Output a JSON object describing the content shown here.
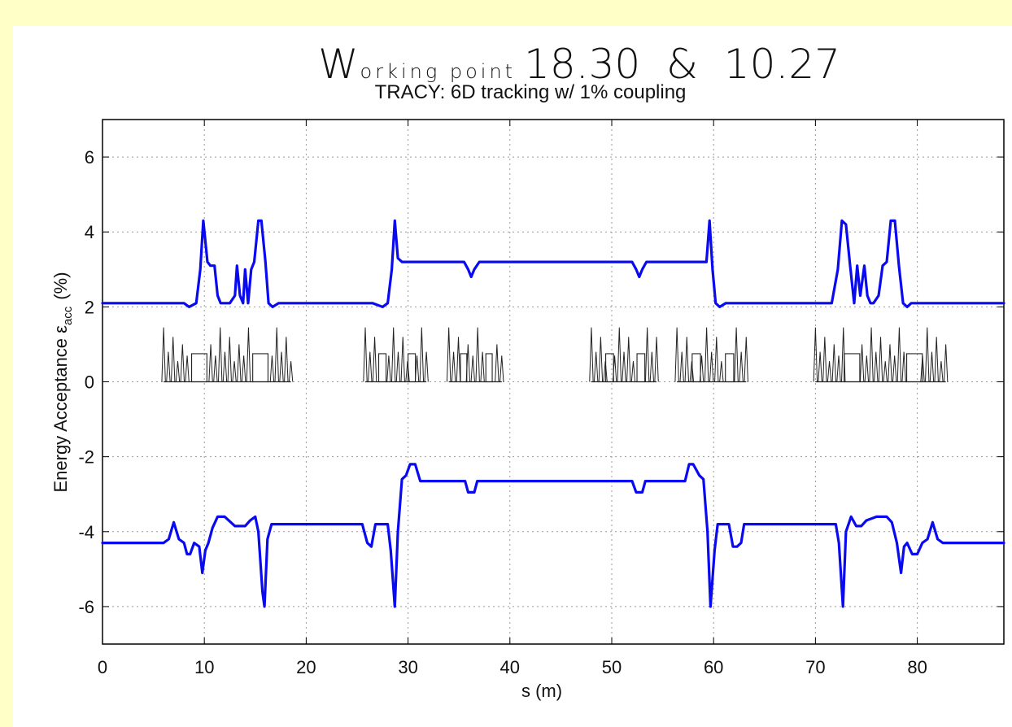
{
  "chart_data": {
    "type": "line",
    "title_main": "Working point 18.30 & 10.27",
    "title_main_parts": [
      "W",
      "orking point",
      "18.30  &  10.27"
    ],
    "title": "TRACY: 6D tracking w/ 1% coupling",
    "xlabel": "s (m)",
    "ylabel": "Energy Acceptance ε",
    "ylabel_sub": "acc",
    "ylabel_unit": "(%)",
    "xlim": [
      0,
      88.5
    ],
    "ylim": [
      -7,
      7
    ],
    "xticks": [
      "0",
      "10",
      "20",
      "30",
      "40",
      "50",
      "60",
      "70",
      "80"
    ],
    "yticks": [
      "-6",
      "-4",
      "-2",
      "0",
      "2",
      "4",
      "6"
    ],
    "grid": true,
    "colors": {
      "series": "#0a0af0",
      "lattice": "#222222",
      "page_background": "#ffffc8",
      "plot_background": "#ffffff"
    },
    "series": [
      {
        "x": [
          0,
          8.0,
          8.5,
          9.2,
          9.6,
          9.9,
          10.3,
          10.6,
          11.0,
          11.3,
          11.6,
          12.5,
          13.0,
          13.2,
          13.5,
          13.8,
          14.0,
          14.3,
          14.6,
          14.9,
          15.3,
          15.6,
          16.0,
          16.3,
          16.7,
          17.3,
          18.0,
          26.5,
          27.5,
          28.0,
          28.4,
          28.7,
          29.0,
          29.4,
          35.5,
          35.9,
          36.2,
          36.5,
          37.0,
          52.0,
          52.4,
          52.7,
          53.0,
          53.4,
          59.3,
          59.6,
          59.9,
          60.2,
          60.6,
          61.2,
          62.0,
          71.0,
          71.6,
          72.2,
          72.6,
          73.0,
          73.4,
          73.8,
          74.1,
          74.4,
          74.8,
          75.1,
          75.4,
          75.7,
          76.2,
          76.6,
          77.0,
          77.4,
          77.8,
          78.2,
          78.6,
          79.0,
          79.4,
          80.2,
          80.6,
          81.0,
          81.5,
          88.5
        ],
        "y": [
          2.1,
          2.1,
          2.0,
          2.1,
          3.0,
          4.3,
          3.2,
          3.1,
          3.1,
          2.3,
          2.1,
          2.1,
          2.3,
          3.1,
          2.3,
          2.1,
          3.0,
          2.1,
          3.0,
          3.2,
          4.3,
          4.3,
          3.2,
          2.1,
          2.0,
          2.1,
          2.1,
          2.1,
          2.0,
          2.1,
          3.0,
          4.3,
          3.3,
          3.2,
          3.2,
          3.0,
          2.8,
          3.0,
          3.2,
          3.2,
          3.0,
          2.8,
          3.0,
          3.2,
          3.2,
          4.3,
          3.0,
          2.1,
          2.0,
          2.1,
          2.1,
          2.1,
          2.1,
          3.0,
          4.3,
          4.2,
          3.1,
          2.1,
          3.1,
          2.3,
          3.1,
          2.3,
          2.1,
          2.1,
          2.3,
          3.1,
          3.2,
          4.3,
          4.3,
          3.1,
          2.1,
          2.0,
          2.1,
          2.1,
          2.1,
          2.1,
          2.1,
          2.1
        ]
      },
      {
        "x": [
          0,
          6.0,
          6.5,
          7.0,
          7.5,
          8.0,
          8.3,
          8.6,
          9.0,
          9.5,
          9.8,
          10.1,
          10.4,
          10.8,
          11.3,
          12.0,
          13.0,
          14.0,
          14.5,
          15.0,
          15.3,
          15.7,
          15.9,
          16.2,
          16.6,
          17.0,
          25.5,
          26.0,
          26.4,
          26.8,
          27.3,
          28.0,
          28.3,
          28.7,
          29.0,
          29.4,
          29.8,
          30.2,
          30.7,
          31.2,
          31.6,
          35.6,
          35.9,
          36.5,
          36.8,
          52.0,
          52.4,
          53.0,
          53.3,
          57.2,
          57.6,
          58.0,
          58.6,
          59.0,
          59.4,
          59.7,
          60.1,
          60.4,
          61.5,
          61.9,
          62.3,
          62.7,
          63.0,
          72.0,
          72.3,
          72.7,
          73.0,
          73.5,
          74.0,
          74.5,
          75.0,
          76.0,
          77.0,
          77.5,
          78.0,
          78.4,
          78.7,
          79.0,
          79.5,
          80.0,
          80.5,
          81.0,
          81.5,
          82.0,
          82.5,
          88.5
        ],
        "y": [
          -4.3,
          -4.3,
          -4.2,
          -3.75,
          -4.2,
          -4.3,
          -4.6,
          -4.6,
          -4.3,
          -4.4,
          -5.1,
          -4.5,
          -4.3,
          -3.9,
          -3.6,
          -3.6,
          -3.85,
          -3.85,
          -3.7,
          -3.6,
          -4.0,
          -5.6,
          -6.0,
          -4.2,
          -3.8,
          -3.8,
          -3.8,
          -4.3,
          -4.4,
          -3.8,
          -3.8,
          -3.8,
          -4.5,
          -6.0,
          -4.0,
          -2.6,
          -2.5,
          -2.2,
          -2.2,
          -2.65,
          -2.65,
          -2.65,
          -2.95,
          -2.95,
          -2.65,
          -2.65,
          -2.95,
          -2.95,
          -2.65,
          -2.65,
          -2.2,
          -2.2,
          -2.5,
          -2.6,
          -4.0,
          -6.0,
          -4.5,
          -3.8,
          -3.8,
          -4.4,
          -4.4,
          -4.3,
          -3.8,
          -3.8,
          -4.3,
          -6.0,
          -4.0,
          -3.6,
          -3.85,
          -3.85,
          -3.7,
          -3.6,
          -3.6,
          -3.75,
          -4.3,
          -5.1,
          -4.4,
          -4.3,
          -4.6,
          -4.6,
          -4.3,
          -4.2,
          -3.75,
          -4.2,
          -4.3,
          -4.3
        ]
      }
    ],
    "lattice_cells": [
      {
        "from": 6.0,
        "to": 18.5
      },
      {
        "from": 25.8,
        "to": 31.8
      },
      {
        "from": 34.0,
        "to": 39.2
      },
      {
        "from": 48.0,
        "to": 54.4
      },
      {
        "from": 56.4,
        "to": 63.2
      },
      {
        "from": 70.0,
        "to": 82.8
      }
    ]
  }
}
